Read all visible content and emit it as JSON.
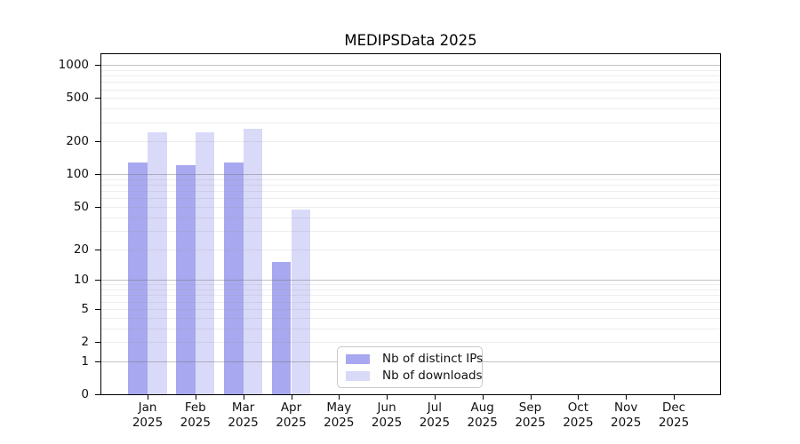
{
  "title": "MEDIPSData 2025",
  "colors": {
    "distinct_ips_bar": "#a8a8f0",
    "downloads_bar": "#d9d9f8",
    "axis": "#000000",
    "grid_major": "#bdbdbd",
    "grid_minor": "#e9e9e9",
    "legend_border": "#c9c9c9",
    "text": "#111111"
  },
  "chart_data": {
    "type": "bar",
    "title": "MEDIPSData 2025",
    "categories": [
      "Jan",
      "Feb",
      "Mar",
      "Apr",
      "May",
      "Jun",
      "Jul",
      "Aug",
      "Sep",
      "Oct",
      "Nov",
      "Dec"
    ],
    "year_label": "2025",
    "series": [
      {
        "name": "Nb of distinct IPs",
        "color": "#a8a8f0",
        "values": [
          128,
          122,
          128,
          15,
          0,
          0,
          0,
          0,
          0,
          0,
          0,
          0
        ]
      },
      {
        "name": "Nb of downloads",
        "color": "#d9d9f8",
        "values": [
          242,
          241,
          262,
          47,
          0,
          0,
          0,
          0,
          0,
          0,
          0,
          0
        ]
      }
    ],
    "xlabel": "",
    "ylabel": "",
    "y_ticks": [
      0,
      1,
      2,
      5,
      10,
      20,
      50,
      100,
      200,
      500,
      1000
    ],
    "y_scale": "log10(1+x)",
    "ylim": [
      0,
      1255
    ],
    "grid": "horizontal major and log-minor gridlines drawn over bars",
    "legend_position": "bottom-center inside plot"
  }
}
